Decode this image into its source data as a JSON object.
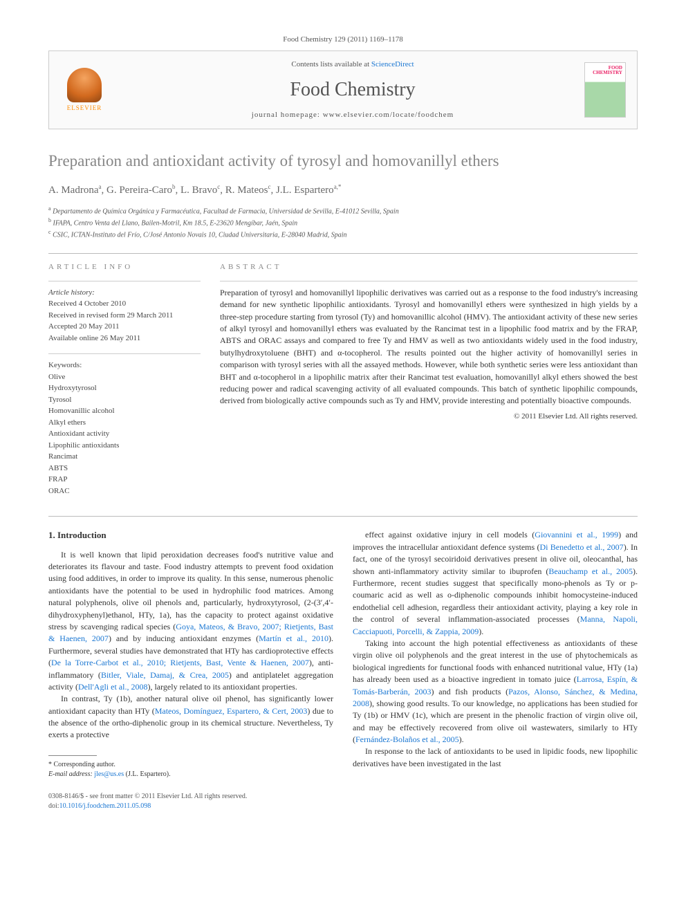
{
  "header": {
    "journal_ref": "Food Chemistry 129 (2011) 1169–1178",
    "contents_prefix": "Contents lists available at ",
    "contents_link": "ScienceDirect",
    "journal_name": "Food Chemistry",
    "homepage_prefix": "journal homepage: ",
    "homepage_url": "www.elsevier.com/locate/foodchem",
    "elsevier_label": "ELSEVIER",
    "cover_text_1": "FOOD",
    "cover_text_2": "CHEMISTRY"
  },
  "article": {
    "title": "Preparation and antioxidant activity of tyrosyl and homovanillyl ethers",
    "authors_html": "A. Madrona<sup>a</sup>, G. Pereira-Caro<sup>b</sup>, L. Bravo<sup>c</sup>, R. Mateos<sup>c</sup>, J.L. Espartero<sup>a,*</sup>",
    "affiliations": [
      {
        "sup": "a",
        "text": "Departamento de Química Orgánica y Farmacéutica, Facultad de Farmacia, Universidad de Sevilla, E-41012 Sevilla, Spain"
      },
      {
        "sup": "b",
        "text": "IFAPA, Centro Venta del Llano, Bailen-Motril, Km 18.5, E-23620 Mengíbar, Jaén, Spain"
      },
      {
        "sup": "c",
        "text": "CSIC, ICTAN-Instituto del Frío, C/José Antonio Novais 10, Ciudad Universitaria, E-28040 Madrid, Spain"
      }
    ]
  },
  "info": {
    "section_label": "ARTICLE INFO",
    "history_label": "Article history:",
    "history": [
      "Received 4 October 2010",
      "Received in revised form 29 March 2011",
      "Accepted 20 May 2011",
      "Available online 26 May 2011"
    ],
    "keywords_label": "Keywords:",
    "keywords": [
      "Olive",
      "Hydroxytyrosol",
      "Tyrosol",
      "Homovanillic alcohol",
      "Alkyl ethers",
      "Antioxidant activity",
      "Lipophilic antioxidants",
      "Rancimat",
      "ABTS",
      "FRAP",
      "ORAC"
    ]
  },
  "abstract": {
    "section_label": "ABSTRACT",
    "text": "Preparation of tyrosyl and homovanillyl lipophilic derivatives was carried out as a response to the food industry's increasing demand for new synthetic lipophilic antioxidants. Tyrosyl and homovanillyl ethers were synthesized in high yields by a three-step procedure starting from tyrosol (Ty) and homovanillic alcohol (HMV). The antioxidant activity of these new series of alkyl tyrosyl and homovanillyl ethers was evaluated by the Rancimat test in a lipophilic food matrix and by the FRAP, ABTS and ORAC assays and compared to free Ty and HMV as well as two antioxidants widely used in the food industry, butylhydroxytoluene (BHT) and α-tocopherol. The results pointed out the higher activity of homovanillyl series in comparison with tyrosyl series with all the assayed methods. However, while both synthetic series were less antioxidant than BHT and α-tocopherol in a lipophilic matrix after their Rancimat test evaluation, homovanillyl alkyl ethers showed the best reducing power and radical scavenging activity of all evaluated compounds. This batch of synthetic lipophilic compounds, derived from biologically active compounds such as Ty and HMV, provide interesting and potentially bioactive compounds.",
    "copyright": "© 2011 Elsevier Ltd. All rights reserved."
  },
  "body": {
    "heading": "1. Introduction",
    "col1": [
      "It is well known that lipid peroxidation decreases food's nutritive value and deteriorates its flavour and taste. Food industry attempts to prevent food oxidation using food additives, in order to improve its quality. In this sense, numerous phenolic antioxidants have the potential to be used in hydrophilic food matrices. Among natural polyphenols, olive oil phenols and, particularly, hydroxytyrosol, (2-(3′,4′-dihydroxyphenyl)ethanol, HTy, 1a), has the capacity to protect against oxidative stress by scavenging radical species (Goya, Mateos, & Bravo, 2007; Rietjents, Bast & Haenen, 2007) and by inducing antioxidant enzymes (Martín et al., 2010). Furthermore, several studies have demonstrated that HTy has cardioprotective effects (De la Torre-Carbot et al., 2010; Rietjents, Bast, Vente & Haenen, 2007), anti-inflammatory (Bitler, Viale, Damaj, & Crea, 2005) and antiplatelet aggregation activity (Dell'Agli et al., 2008), largely related to its antioxidant properties.",
      "In contrast, Ty (1b), another natural olive oil phenol, has significantly lower antioxidant capacity than HTy (Mateos, Domínguez, Espartero, & Cert, 2003) due to the absence of the ortho-diphenolic group in its chemical structure. Nevertheless, Ty exerts a protective"
    ],
    "col2": [
      "effect against oxidative injury in cell models (Giovannini et al., 1999) and improves the intracellular antioxidant defence systems (Di Benedetto et al., 2007). In fact, one of the tyrosyl secoiridoid derivatives present in olive oil, oleocanthal, has shown anti-inflammatory activity similar to ibuprofen (Beauchamp et al., 2005). Furthermore, recent studies suggest that specifically mono-phenols as Ty or p-coumaric acid as well as o-diphenolic compounds inhibit homocysteine-induced endothelial cell adhesion, regardless their antioxidant activity, playing a key role in the control of several inflammation-associated processes (Manna, Napoli, Cacciapuoti, Porcelli, & Zappia, 2009).",
      "Taking into account the high potential effectiveness as antioxidants of these virgin olive oil polyphenols and the great interest in the use of phytochemicals as biological ingredients for functional foods with enhanced nutritional value, HTy (1a) has already been used as a bioactive ingredient in tomato juice (Larrosa, Espín, & Tomás-Barberán, 2003) and fish products (Pazos, Alonso, Sánchez, & Medina, 2008), showing good results. To our knowledge, no applications has been studied for Ty (1b) or HMV (1c), which are present in the phenolic fraction of virgin olive oil, and may be effectively recovered from olive oil wastewaters, similarly to HTy (Fernández-Bolaños et al., 2005).",
      "In response to the lack of antioxidants to be used in lipidic foods, new lipophilic derivatives have been investigated in the last"
    ]
  },
  "footnote": {
    "corr_label": "* Corresponding author.",
    "email_label": "E-mail address:",
    "email": "jles@us.es",
    "email_name": "(J.L. Espartero)."
  },
  "footer": {
    "issn_line": "0308-8146/$ - see front matter © 2011 Elsevier Ltd. All rights reserved.",
    "doi_label": "doi:",
    "doi": "10.1016/j.foodchem.2011.05.098"
  },
  "colors": {
    "link": "#1976d2",
    "header_gray": "#868686",
    "text": "#333333",
    "border": "#cccccc"
  }
}
